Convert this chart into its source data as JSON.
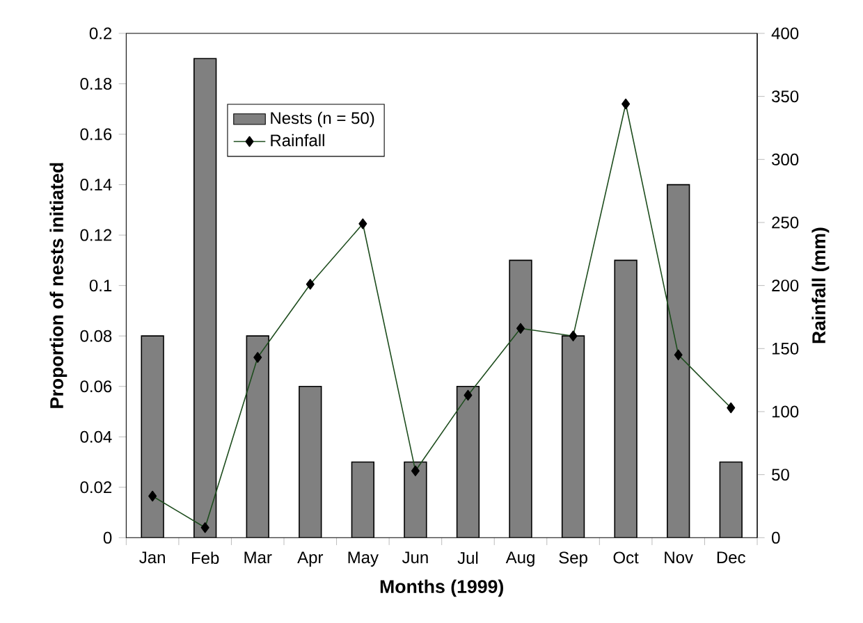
{
  "chart_data": {
    "type": "bar",
    "xlabel": "Months (1999)",
    "ylabel": "Proportion of nests initiated",
    "y2label": "Rainfall (mm)",
    "categories": [
      "Jan",
      "Feb",
      "Mar",
      "Apr",
      "May",
      "Jun",
      "Jul",
      "Aug",
      "Sep",
      "Oct",
      "Nov",
      "Dec"
    ],
    "series": [
      {
        "name": "Nests (n = 50)",
        "color": "#808080",
        "values": [
          0.08,
          0.19,
          0.08,
          0.06,
          0.03,
          0.03,
          0.06,
          0.11,
          0.08,
          0.11,
          0.14,
          0.03
        ]
      },
      {
        "name": "Rainfall",
        "type": "line",
        "axis": "y2",
        "color": "#1e4d1e",
        "marker": "diamond",
        "values": [
          33,
          8,
          143,
          201,
          249,
          53,
          113,
          166,
          160,
          344,
          145,
          103
        ]
      }
    ],
    "ylim": [
      0,
      0.2
    ],
    "yticks": [
      0,
      0.02,
      0.04,
      0.06,
      0.08,
      0.1,
      0.12,
      0.14,
      0.16,
      0.18,
      0.2
    ],
    "y2lim": [
      0,
      400
    ],
    "y2ticks": [
      0,
      50,
      100,
      150,
      200,
      250,
      300,
      350,
      400
    ],
    "legend": "top left",
    "grid": false
  }
}
